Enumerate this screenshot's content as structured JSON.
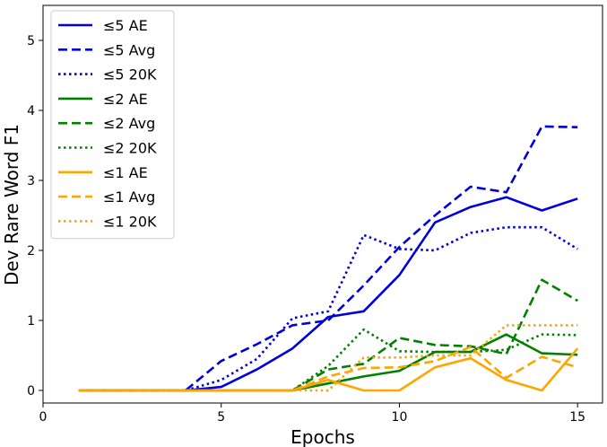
{
  "chart_data": {
    "type": "line",
    "xlabel": "Epochs",
    "ylabel": "Dev Rare Word F1",
    "xlim": [
      0,
      15.7
    ],
    "ylim": [
      -0.18,
      5.5
    ],
    "xticks": [
      0,
      5,
      10,
      15
    ],
    "yticks": [
      0,
      1,
      2,
      3,
      4,
      5
    ],
    "xtick_labels": [
      "0",
      "5",
      "10",
      "15"
    ],
    "ytick_labels": [
      "0",
      "1",
      "2",
      "3",
      "4",
      "5"
    ],
    "legend_position": "top-left",
    "grid": false,
    "series": [
      {
        "name": "≤5 AE",
        "color": "#0000dd",
        "dash": "solid",
        "x": [
          1,
          2,
          3,
          4,
          5,
          6,
          7,
          8,
          9,
          10,
          11,
          12,
          13,
          14,
          15
        ],
        "y": [
          0,
          0,
          0,
          0,
          0.05,
          0.3,
          0.6,
          1.05,
          1.13,
          1.65,
          2.4,
          2.62,
          2.76,
          2.57,
          2.74
        ]
      },
      {
        "name": "≤5 Avg",
        "color": "#0000dd",
        "dash": "dashed",
        "x": [
          1,
          2,
          3,
          4,
          5,
          6,
          7,
          8,
          9,
          10,
          11,
          12,
          13,
          14,
          15
        ],
        "y": [
          0,
          0,
          0,
          0,
          0.42,
          0.66,
          0.93,
          1.0,
          1.5,
          2.05,
          2.5,
          2.91,
          2.83,
          3.77,
          3.76
        ]
      },
      {
        "name": "≤5 20K",
        "color": "#0000dd",
        "dash": "dotted",
        "x": [
          1,
          2,
          3,
          4,
          5,
          6,
          7,
          8,
          9,
          10,
          11,
          12,
          13,
          14,
          15
        ],
        "y": [
          0,
          0,
          0,
          0,
          0.15,
          0.45,
          1.03,
          1.13,
          2.22,
          2.02,
          2.0,
          2.25,
          2.33,
          2.33,
          2.02
        ]
      },
      {
        "name": "≤2 AE",
        "color": "#008000",
        "dash": "solid",
        "x": [
          1,
          2,
          3,
          4,
          5,
          6,
          7,
          8,
          9,
          10,
          11,
          12,
          13,
          14,
          15
        ],
        "y": [
          0,
          0,
          0,
          0,
          0,
          0,
          0,
          0.1,
          0.2,
          0.28,
          0.55,
          0.55,
          0.8,
          0.53,
          0.51
        ]
      },
      {
        "name": "≤2 Avg",
        "color": "#008000",
        "dash": "dashed",
        "x": [
          1,
          2,
          3,
          4,
          5,
          6,
          7,
          8,
          9,
          10,
          11,
          12,
          13,
          14,
          15
        ],
        "y": [
          0,
          0,
          0,
          0,
          0,
          0,
          0,
          0.3,
          0.38,
          0.75,
          0.65,
          0.63,
          0.52,
          1.58,
          1.28
        ]
      },
      {
        "name": "≤2 20K",
        "color": "#008000",
        "dash": "dotted",
        "x": [
          1,
          2,
          3,
          4,
          5,
          6,
          7,
          8,
          9,
          10,
          11,
          12,
          13,
          14,
          15
        ],
        "y": [
          0,
          0,
          0,
          0,
          0,
          0,
          0,
          0.35,
          0.87,
          0.56,
          0.55,
          0.55,
          0.58,
          0.8,
          0.79
        ]
      },
      {
        "name": "≤1 AE",
        "color": "#ffa500",
        "dash": "solid",
        "x": [
          1,
          2,
          3,
          4,
          5,
          6,
          7,
          8,
          9,
          10,
          11,
          12,
          13,
          14,
          15
        ],
        "y": [
          0,
          0,
          0,
          0,
          0,
          0,
          0,
          0.15,
          0,
          0,
          0.33,
          0.46,
          0.15,
          0,
          0.6
        ]
      },
      {
        "name": "≤1 Avg",
        "color": "#ffa500",
        "dash": "dashed",
        "x": [
          1,
          2,
          3,
          4,
          5,
          6,
          7,
          8,
          9,
          10,
          11,
          12,
          13,
          14,
          15
        ],
        "y": [
          0,
          0,
          0,
          0,
          0,
          0,
          0,
          0.2,
          0.32,
          0.33,
          0.42,
          0.62,
          0.18,
          0.48,
          0.33
        ]
      },
      {
        "name": "≤1 20K",
        "color": "#ffa500",
        "dash": "dotted",
        "x": [
          1,
          2,
          3,
          4,
          5,
          6,
          7,
          8,
          9,
          10,
          11,
          12,
          13,
          14,
          15
        ],
        "y": [
          0,
          0,
          0,
          0,
          0,
          0,
          0,
          0,
          0.47,
          0.47,
          0.5,
          0.5,
          0.93,
          0.93,
          0.93
        ]
      }
    ]
  }
}
